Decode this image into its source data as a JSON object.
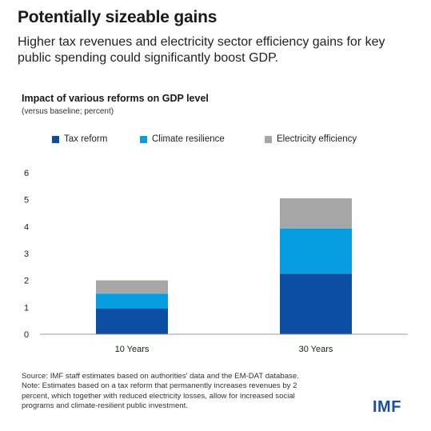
{
  "headline": "Potentially sizeable gains",
  "subheadline": "Higher tax revenues and electricity sector efficiency gains for key public spending could significantly boost GDP.",
  "source_lines": [
    "Source: IMF staff estimates based on authorities' data and the EM-DAT database.",
    "Note: Estimates based on a tax reform that permanently increases revenues by 2",
    "percent, which together with reduced electricity losses, allow for increased social",
    "programs and climate-resilient public investment."
  ],
  "logo_text": "IMF",
  "colors": {
    "tax": "#0a4da2",
    "climate": "#069ee0",
    "electricity": "#a6a6a6",
    "axis": "#999999"
  },
  "chart_data": {
    "type": "bar",
    "stacked": true,
    "title": "Impact of various reforms on GDP level",
    "subtitle": "(versus baseline; percent)",
    "categories": [
      "10 Years",
      "30 Years"
    ],
    "series": [
      {
        "name": "Tax reform",
        "values": [
          0.95,
          2.25
        ]
      },
      {
        "name": "Climate resilience",
        "values": [
          0.55,
          1.68
        ]
      },
      {
        "name": "Electricity efficiency",
        "values": [
          0.5,
          1.12
        ]
      }
    ],
    "ylim": [
      0,
      6
    ],
    "yticks": [
      "0",
      "1",
      "2",
      "3",
      "4",
      "5",
      "6"
    ],
    "grid": false,
    "legend": "top"
  }
}
